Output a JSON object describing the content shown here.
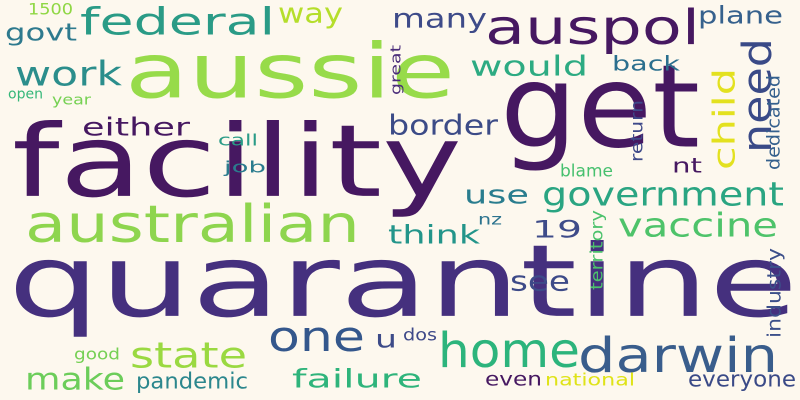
{
  "word_cloud": {
    "background": "#fdf8ee",
    "words": [
      {
        "text": "quarantine",
        "color": "#45307e"
      },
      {
        "text": "facility",
        "color": "#461861"
      },
      {
        "text": "get",
        "color": "#461861"
      },
      {
        "text": "aussie",
        "color": "#97db4a"
      },
      {
        "text": "auspol",
        "color": "#461861"
      },
      {
        "text": "australian",
        "color": "#8ed54e"
      },
      {
        "text": "home",
        "color": "#2cb47c"
      },
      {
        "text": "darwin",
        "color": "#395d8c"
      },
      {
        "text": "need",
        "color": "#3a4a87"
      },
      {
        "text": "federal",
        "color": "#2a9b86"
      },
      {
        "text": "one",
        "color": "#34578c"
      },
      {
        "text": "government",
        "color": "#2aa582"
      },
      {
        "text": "vaccine",
        "color": "#4ec36a"
      },
      {
        "text": "state",
        "color": "#9ad941"
      },
      {
        "text": "work",
        "color": "#2b8e8c"
      },
      {
        "text": "would",
        "color": "#2dab82"
      },
      {
        "text": "failure",
        "color": "#2fb47b"
      },
      {
        "text": "make",
        "color": "#6ccd5a"
      },
      {
        "text": "child",
        "color": "#e3e11f"
      },
      {
        "text": "many",
        "color": "#3e4b89"
      },
      {
        "text": "way",
        "color": "#b5de2b"
      },
      {
        "text": "border",
        "color": "#3c4b87"
      },
      {
        "text": "either",
        "color": "#461861"
      },
      {
        "text": "use",
        "color": "#2a7d8e"
      },
      {
        "text": "see",
        "color": "#3d4a88"
      },
      {
        "text": "think",
        "color": "#23958a"
      },
      {
        "text": "plane",
        "color": "#36618d"
      },
      {
        "text": "govt",
        "color": "#2e7a8e"
      },
      {
        "text": "19",
        "color": "#3e4b89"
      },
      {
        "text": "u",
        "color": "#3d4b88"
      },
      {
        "text": "pandemic",
        "color": "#2c878d"
      },
      {
        "text": "everyone",
        "color": "#3a4a87"
      },
      {
        "text": "back",
        "color": "#2b6f8e"
      },
      {
        "text": "even",
        "color": "#461861"
      },
      {
        "text": "dedicated",
        "color": "#35608d"
      },
      {
        "text": "industry",
        "color": "#3c4f8a"
      },
      {
        "text": "return",
        "color": "#3e4989"
      },
      {
        "text": "territory",
        "color": "#4cc26c"
      },
      {
        "text": "nt",
        "color": "#461861"
      },
      {
        "text": "blame",
        "color": "#46c06e"
      },
      {
        "text": "job",
        "color": "#2b7c8e"
      },
      {
        "text": "call",
        "color": "#2a9b87"
      },
      {
        "text": "open",
        "color": "#35b779"
      },
      {
        "text": "year",
        "color": "#76d153"
      },
      {
        "text": "good",
        "color": "#75d054"
      },
      {
        "text": "dos",
        "color": "#3e4989"
      },
      {
        "text": "great",
        "color": "#4a2c7a"
      },
      {
        "text": "1500",
        "color": "#8fd744"
      },
      {
        "text": "nz",
        "color": "#2c738e"
      },
      {
        "text": "national",
        "color": "#dfe318"
      }
    ]
  }
}
